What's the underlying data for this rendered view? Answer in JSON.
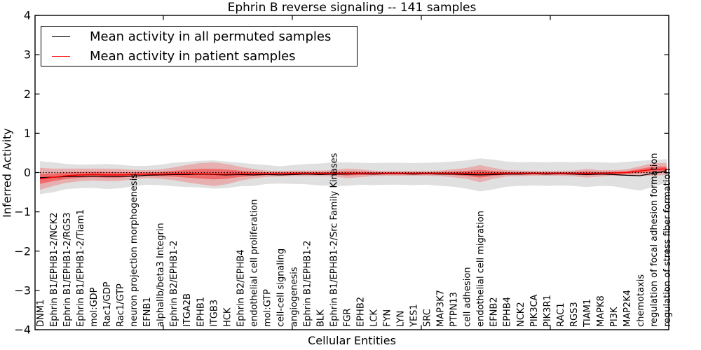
{
  "title": "Ephrin B reverse signaling -- 141 samples",
  "axes": {
    "x_label": "Cellular Entities",
    "y_label": "Inferred Activity",
    "y_ticks": [
      4,
      3,
      2,
      1,
      0,
      -1,
      -2,
      -3,
      -4
    ]
  },
  "legend": {
    "items": [
      {
        "label": "Mean activity in all permuted samples",
        "color": "#000000"
      },
      {
        "label": "Mean activity in patient samples",
        "color": "#ff0000"
      }
    ]
  },
  "colors": {
    "permuted_line": "#000000",
    "patient_line": "#ff0000",
    "permuted_band": "#000000",
    "patient_band": "#ff0000",
    "zero_line": "#000000"
  },
  "chart_data": {
    "type": "line",
    "title": "Ephrin B reverse signaling -- 141 samples",
    "xlabel": "Cellular Entities",
    "ylabel": "Inferred Activity",
    "ylim": [
      -4,
      4
    ],
    "grid": false,
    "legend_position": "upper left",
    "zero_reference_line": 0,
    "categories": [
      "DNM1",
      "Ephrin B1/EPHB1-2/NCK2",
      "Ephrin B1/EPHB1-2/RGS3",
      "Ephrin B1/EPHB1-2/Tiam1",
      "mol:GDP",
      "Rac1/GDP",
      "Rac1/GTP",
      "neuron projection morphogenesis",
      "EFNB1",
      "alphaIIb/beta3 Integrin",
      "Ephrin B2/EPHB1-2",
      "ITGA2B",
      "EPHB1",
      "ITGB3",
      "HCK",
      "Ephrin B2/EPHB4",
      "endothelial cell proliferation",
      "mol:GTP",
      "cell-cell signaling",
      "angiogenesis",
      "Ephrin B1/EPHB1-2",
      "BLK",
      "Ephrin B1/EPHB1-2/Src Family Kinases",
      "FGR",
      "EPHB2",
      "LCK",
      "FYN",
      "LYN",
      "YES1",
      "SRC",
      "MAP3K7",
      "PTPN13",
      "cell adhesion",
      "endothelial cell migration",
      "EFNB2",
      "EPHB4",
      "NCK2",
      "PIK3CA",
      "PIK3R1",
      "RAC1",
      "RGS3",
      "TIAM1",
      "MAPK8",
      "PI3K",
      "MAP2K4",
      "chemotaxis",
      "regulation of focal adhesion formation",
      "regulation of stress fiber formation"
    ],
    "series": [
      {
        "name": "Mean activity in all permuted samples",
        "color": "#000000",
        "values": [
          -0.13,
          -0.12,
          -0.1,
          -0.1,
          -0.09,
          -0.1,
          -0.1,
          -0.09,
          -0.07,
          -0.06,
          -0.05,
          -0.05,
          -0.04,
          -0.05,
          -0.06,
          -0.05,
          -0.06,
          -0.05,
          -0.06,
          -0.05,
          -0.04,
          -0.05,
          -0.04,
          -0.04,
          -0.03,
          -0.04,
          -0.03,
          -0.03,
          -0.04,
          -0.03,
          -0.04,
          -0.04,
          -0.05,
          -0.06,
          -0.05,
          -0.04,
          -0.04,
          -0.03,
          -0.04,
          -0.03,
          -0.04,
          -0.05,
          -0.04,
          -0.05,
          -0.07,
          -0.08,
          -0.02,
          0.04
        ],
        "band_halfwidth": [
          0.42,
          0.38,
          0.32,
          0.3,
          0.3,
          0.32,
          0.3,
          0.26,
          0.24,
          0.26,
          0.3,
          0.32,
          0.34,
          0.36,
          0.34,
          0.3,
          0.28,
          0.24,
          0.22,
          0.24,
          0.26,
          0.28,
          0.3,
          0.3,
          0.28,
          0.28,
          0.28,
          0.28,
          0.28,
          0.28,
          0.3,
          0.32,
          0.36,
          0.42,
          0.38,
          0.32,
          0.3,
          0.3,
          0.3,
          0.3,
          0.3,
          0.32,
          0.3,
          0.3,
          0.34,
          0.38,
          0.34,
          0.3
        ]
      },
      {
        "name": "Mean activity in patient samples",
        "color": "#ff0000",
        "values": [
          -0.16,
          -0.12,
          -0.08,
          -0.06,
          -0.05,
          -0.06,
          -0.06,
          -0.05,
          -0.04,
          -0.04,
          -0.03,
          -0.03,
          -0.03,
          -0.04,
          -0.04,
          -0.03,
          -0.03,
          -0.03,
          -0.03,
          -0.02,
          -0.02,
          -0.02,
          -0.02,
          -0.02,
          -0.02,
          -0.02,
          -0.02,
          -0.02,
          -0.02,
          -0.02,
          -0.02,
          -0.02,
          -0.02,
          -0.03,
          -0.02,
          -0.02,
          -0.02,
          -0.02,
          -0.02,
          -0.02,
          -0.02,
          -0.02,
          -0.02,
          -0.01,
          0.0,
          0.04,
          0.08,
          0.09
        ],
        "band_halfwidth": [
          0.28,
          0.22,
          0.18,
          0.16,
          0.15,
          0.16,
          0.15,
          0.12,
          0.1,
          0.12,
          0.16,
          0.22,
          0.27,
          0.3,
          0.26,
          0.18,
          0.12,
          0.08,
          0.07,
          0.07,
          0.07,
          0.07,
          0.08,
          0.12,
          0.1,
          0.07,
          0.06,
          0.06,
          0.06,
          0.06,
          0.07,
          0.1,
          0.14,
          0.22,
          0.14,
          0.08,
          0.07,
          0.06,
          0.06,
          0.06,
          0.07,
          0.11,
          0.08,
          0.07,
          0.08,
          0.12,
          0.16,
          0.15
        ]
      }
    ]
  }
}
